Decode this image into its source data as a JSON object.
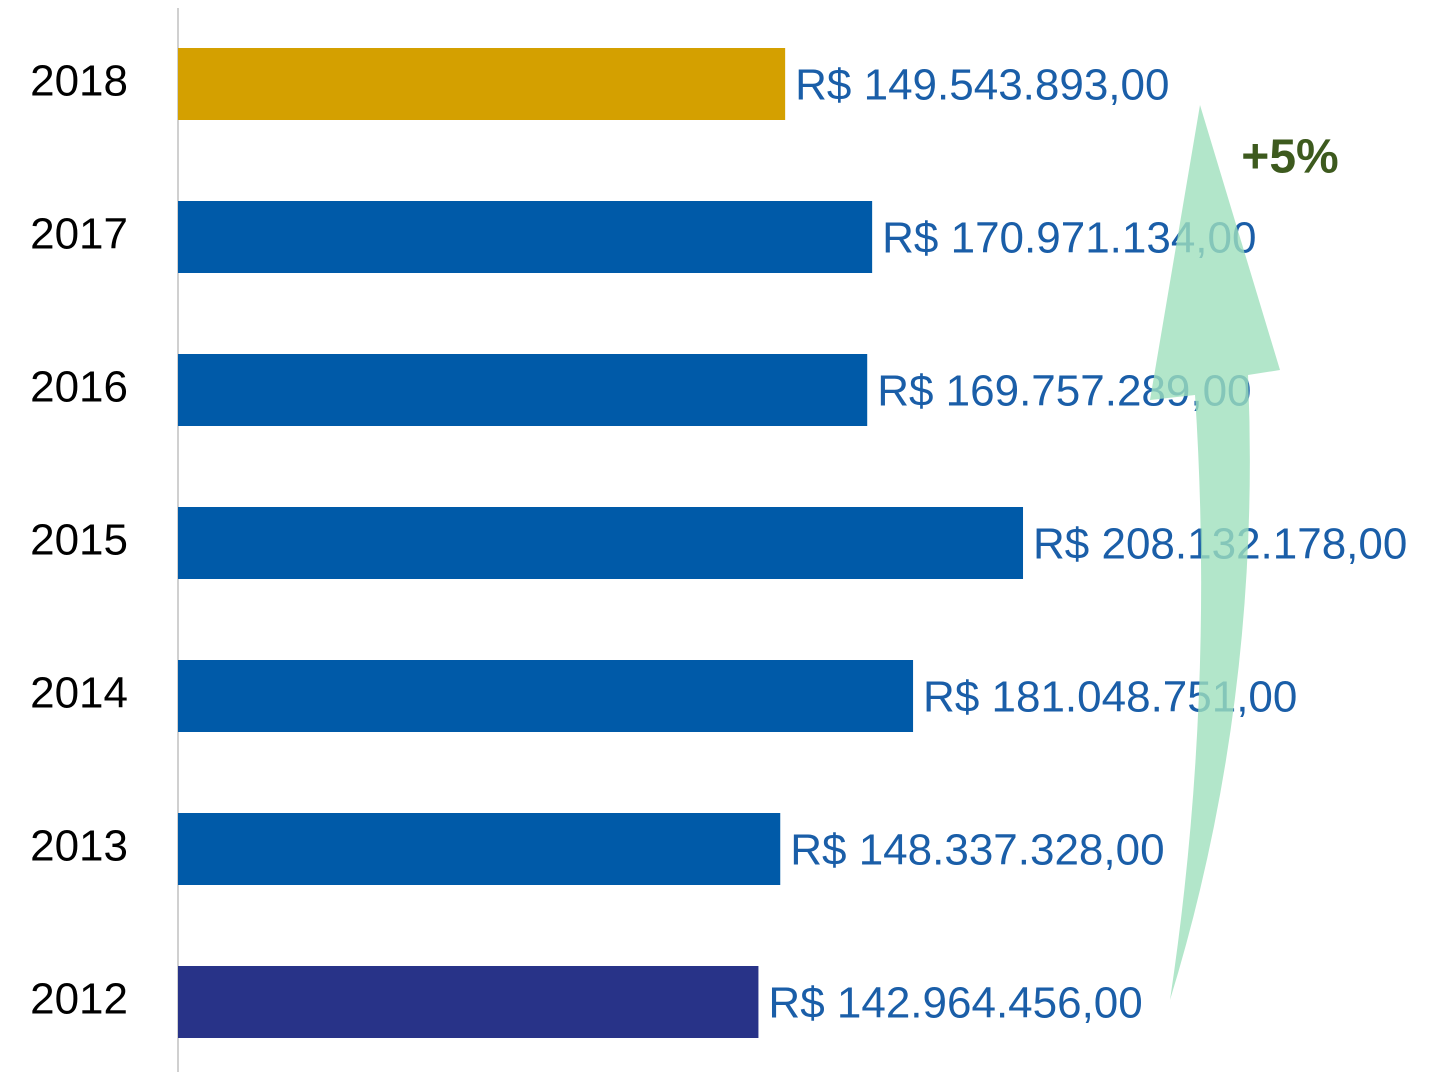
{
  "chart_data": {
    "type": "bar",
    "orientation": "horizontal",
    "categories": [
      "2018",
      "2017",
      "2016",
      "2015",
      "2014",
      "2013",
      "2012"
    ],
    "values": [
      149543893,
      170971134,
      169757289,
      208132178,
      181048751,
      148337328,
      142964456
    ],
    "value_labels": [
      "R$ 149.543.893,00",
      "R$ 170.971.134,00",
      "R$ 169.757.289,00",
      "R$ 208.132.178,00",
      "R$ 181.048.751,00",
      "R$ 148.337.328,00",
      "R$ 142.964.456,00"
    ],
    "colors": [
      "#d4a000",
      "#005aa8",
      "#005aa8",
      "#005aa8",
      "#005aa8",
      "#005aa8",
      "#283388"
    ],
    "xlim": [
      0,
      300000000
    ],
    "annotation": "+5%"
  }
}
